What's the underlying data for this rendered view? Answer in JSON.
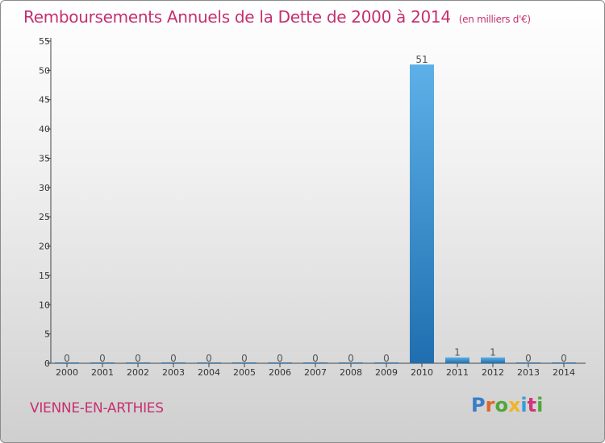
{
  "header": {
    "title": "Remboursements Annuels de la Dette de 2000 à 2014",
    "subtitle": "(en milliers d'€)"
  },
  "footer": {
    "commune": "VIENNE-EN-ARTHIES",
    "logo": "Proxiti"
  },
  "colors": {
    "title": "#c5306f",
    "bar_light": "#5db0e8",
    "bar_dark": "#1f6fb0"
  },
  "chart_data": {
    "type": "bar",
    "title": "Remboursements Annuels de la Dette de 2000 à 2014",
    "subtitle": "(en milliers d'€)",
    "categories": [
      "2000",
      "2001",
      "2002",
      "2003",
      "2004",
      "2005",
      "2006",
      "2007",
      "2008",
      "2009",
      "2010",
      "2011",
      "2012",
      "2013",
      "2014"
    ],
    "values": [
      0,
      0,
      0,
      0,
      0,
      0,
      0,
      0,
      0,
      0,
      51,
      1,
      1,
      0,
      0
    ],
    "data_labels": [
      "0",
      "0",
      "0",
      "0",
      "0",
      "0",
      "0",
      "0",
      "0",
      "0",
      "51",
      "1",
      "1",
      "0",
      "0"
    ],
    "ylim": [
      0,
      55
    ],
    "yticks": [
      0,
      5,
      10,
      15,
      20,
      25,
      30,
      35,
      40,
      45,
      50,
      55
    ],
    "xlabel": "",
    "ylabel": "",
    "grid": false,
    "legend": "none"
  }
}
